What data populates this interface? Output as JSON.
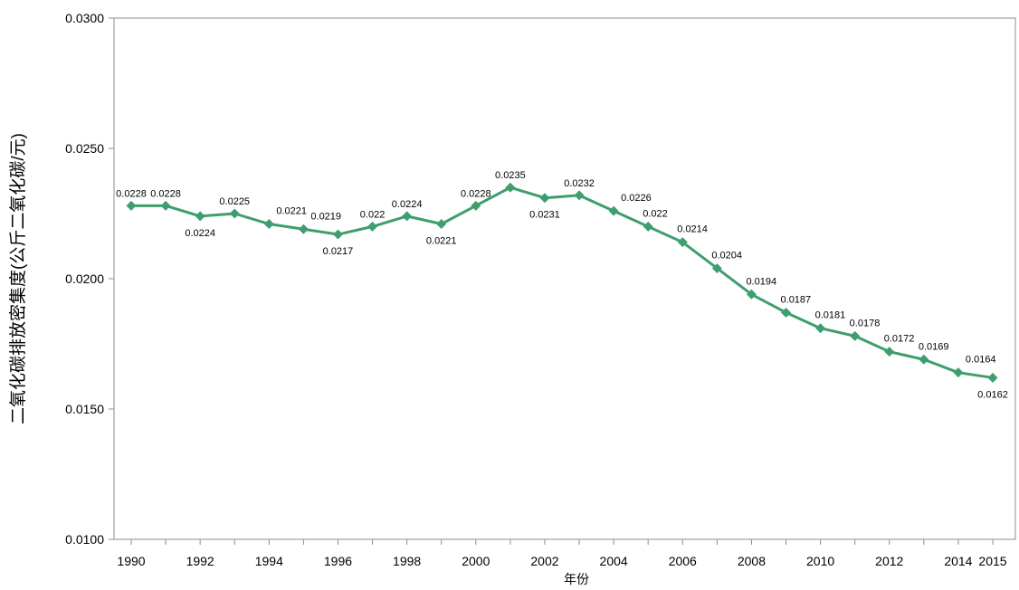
{
  "chart_data": {
    "type": "line",
    "title": "",
    "xlabel": "年份",
    "ylabel": "二氧化碳排放密集度(公斤二氧化碳/元)",
    "ylim": [
      0.01,
      0.03
    ],
    "yticks": [
      "0.0100",
      "0.0150",
      "0.0200",
      "0.0250",
      "0.0300"
    ],
    "xticks": [
      "1990",
      "1992",
      "1994",
      "1996",
      "1998",
      "2000",
      "2002",
      "2004",
      "2006",
      "2008",
      "2010",
      "2012",
      "2014",
      "2015"
    ],
    "x": [
      1990,
      1991,
      1992,
      1993,
      1994,
      1995,
      1996,
      1997,
      1998,
      1999,
      2000,
      2001,
      2002,
      2003,
      2004,
      2005,
      2006,
      2007,
      2008,
      2009,
      2010,
      2011,
      2012,
      2013,
      2014,
      2015
    ],
    "series": [
      {
        "values": [
          0.0228,
          0.0228,
          0.0224,
          0.0225,
          0.0221,
          0.0219,
          0.0217,
          0.022,
          0.0224,
          0.0221,
          0.0228,
          0.0235,
          0.0231,
          0.0232,
          0.0226,
          0.022,
          0.0214,
          0.0204,
          0.0194,
          0.0187,
          0.0181,
          0.0178,
          0.0172,
          0.0169,
          0.0164,
          0.0162
        ],
        "labels": [
          "0.0228",
          "0.0228",
          "0.0224",
          "0.0225",
          "0.0221",
          "0.0219",
          "0.0217",
          "0.022",
          "0.0224",
          "0.0221",
          "0.0228",
          "0.0235",
          "0.0231",
          "0.0232",
          "0.0226",
          "0.022",
          "0.0214",
          "0.0204",
          "0.0194",
          "0.0187",
          "0.0181",
          "0.0178",
          "0.0172",
          "0.0169",
          "0.0164",
          "0.0162"
        ],
        "color": "#3e9e6e"
      }
    ],
    "grid": false,
    "legend": "none"
  }
}
